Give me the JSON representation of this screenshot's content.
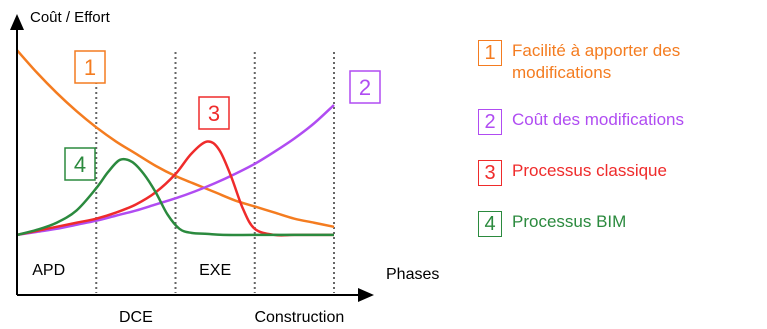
{
  "chart_data": {
    "type": "line",
    "title": "",
    "ylabel": "Coût / Effort",
    "xlabel": "Phases",
    "xlim": [
      0,
      4
    ],
    "ylim": [
      0,
      10
    ],
    "grid": false,
    "legend_position": "right",
    "phases_top": [
      "APD",
      "EXE"
    ],
    "phases_bottom": [
      "DCE",
      "Construction"
    ],
    "series": [
      {
        "id": "1",
        "label": "1",
        "name": "Facilité à apporter des modifications",
        "legend_lines": [
          "Facilité à apporter des",
          "modifications"
        ],
        "color": "#f47c20",
        "x": [
          0,
          0.25,
          0.5,
          0.75,
          1,
          1.25,
          1.5,
          1.75,
          2,
          2.25,
          2.5,
          2.75,
          3,
          3.25,
          3.5,
          3.75,
          4
        ],
        "y": [
          9.4,
          8.3,
          7.3,
          6.4,
          5.6,
          4.9,
          4.3,
          3.7,
          3.2,
          2.8,
          2.4,
          2.0,
          1.7,
          1.4,
          1.1,
          0.9,
          0.7
        ]
      },
      {
        "id": "2",
        "label": "2",
        "name": "Coût des modifications",
        "legend_lines": [
          "Coût des modifications"
        ],
        "color": "#b04cf2",
        "x": [
          0,
          0.25,
          0.5,
          0.75,
          1,
          1.25,
          1.5,
          1.75,
          2,
          2.25,
          2.5,
          2.75,
          3,
          3.25,
          3.5,
          3.75,
          4
        ],
        "y": [
          0.3,
          0.45,
          0.6,
          0.8,
          1.0,
          1.25,
          1.5,
          1.8,
          2.1,
          2.45,
          2.85,
          3.3,
          3.8,
          4.4,
          5.05,
          5.8,
          6.7
        ]
      },
      {
        "id": "3",
        "label": "3",
        "name": "Processus classique",
        "legend_lines": [
          "Processus classique"
        ],
        "color": "#ef2b2b",
        "x": [
          0,
          0.25,
          0.5,
          0.75,
          1,
          1.25,
          1.5,
          1.75,
          2,
          2.2,
          2.4,
          2.55,
          2.7,
          2.85,
          3,
          3.25,
          3.5,
          3.75,
          4
        ],
        "y": [
          0.3,
          0.5,
          0.7,
          0.9,
          1.1,
          1.4,
          1.8,
          2.4,
          3.3,
          4.3,
          4.9,
          4.5,
          3.2,
          1.6,
          0.6,
          0.3,
          0.3,
          0.3,
          0.3
        ]
      },
      {
        "id": "4",
        "label": "4",
        "name": "Processus BIM",
        "legend_lines": [
          "Processus BIM"
        ],
        "color": "#2b8a3e",
        "x": [
          0,
          0.25,
          0.5,
          0.75,
          1,
          1.15,
          1.3,
          1.45,
          1.6,
          1.75,
          1.9,
          2.05,
          2.2,
          2.4,
          2.6,
          3,
          3.5,
          4
        ],
        "y": [
          0.3,
          0.55,
          0.9,
          1.5,
          2.6,
          3.4,
          4.0,
          3.9,
          3.3,
          2.4,
          1.3,
          0.6,
          0.4,
          0.35,
          0.3,
          0.3,
          0.3,
          0.3
        ]
      }
    ]
  }
}
